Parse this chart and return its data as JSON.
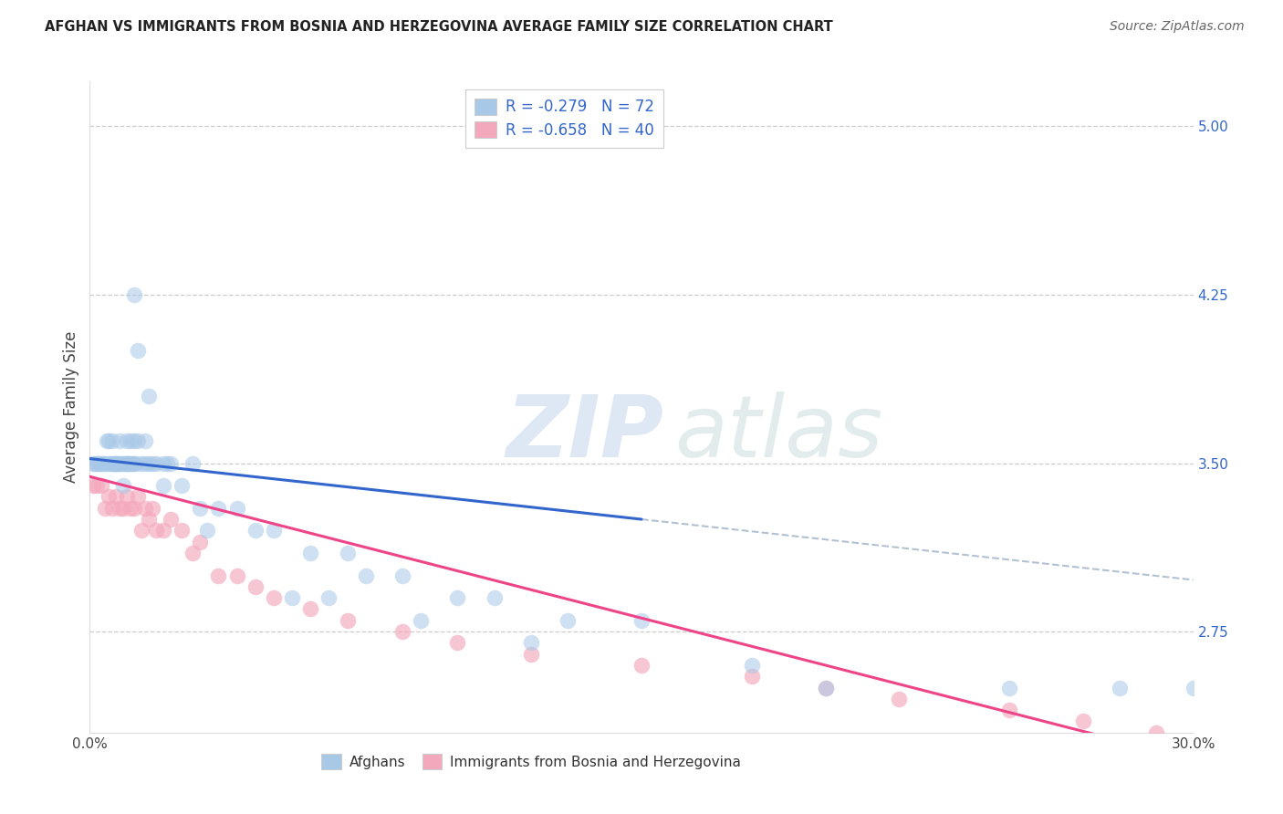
{
  "title": "AFGHAN VS IMMIGRANTS FROM BOSNIA AND HERZEGOVINA AVERAGE FAMILY SIZE CORRELATION CHART",
  "source": "Source: ZipAtlas.com",
  "ylabel": "Average Family Size",
  "right_yticks": [
    5.0,
    4.25,
    3.5,
    2.75
  ],
  "xlim": [
    0.0,
    30.0
  ],
  "ylim": [
    2.3,
    5.2
  ],
  "blue_color": "#a8c8e8",
  "pink_color": "#f4a8bc",
  "blue_line_color": "#3366cc",
  "pink_line_color": "#ee4488",
  "gray_dash_color": "#aabbcc",
  "afghans_x": [
    0.1,
    0.15,
    0.2,
    0.25,
    0.3,
    0.35,
    0.4,
    0.45,
    0.5,
    0.5,
    0.55,
    0.6,
    0.6,
    0.65,
    0.7,
    0.7,
    0.75,
    0.8,
    0.8,
    0.85,
    0.9,
    0.9,
    0.95,
    1.0,
    1.0,
    1.0,
    1.05,
    1.1,
    1.1,
    1.15,
    1.2,
    1.2,
    1.25,
    1.3,
    1.4,
    1.5,
    1.5,
    1.6,
    1.7,
    1.8,
    2.0,
    2.0,
    2.2,
    2.5,
    2.8,
    3.0,
    3.5,
    4.0,
    4.5,
    5.0,
    6.0,
    7.0,
    7.5,
    8.5,
    10.0,
    11.0,
    13.0,
    15.0,
    1.2,
    1.3,
    1.6,
    2.1,
    3.2,
    5.5,
    6.5,
    9.0,
    12.0,
    18.0,
    20.0,
    25.0,
    28.0,
    30.0
  ],
  "afghans_y": [
    3.5,
    3.5,
    3.5,
    3.5,
    3.5,
    3.5,
    3.5,
    3.6,
    3.5,
    3.6,
    3.5,
    3.5,
    3.6,
    3.5,
    3.5,
    3.5,
    3.5,
    3.5,
    3.6,
    3.5,
    3.5,
    3.4,
    3.5,
    3.5,
    3.6,
    3.5,
    3.5,
    3.5,
    3.6,
    3.5,
    3.5,
    3.6,
    3.5,
    3.6,
    3.5,
    3.5,
    3.6,
    3.5,
    3.5,
    3.5,
    3.5,
    3.4,
    3.5,
    3.4,
    3.5,
    3.3,
    3.3,
    3.3,
    3.2,
    3.2,
    3.1,
    3.1,
    3.0,
    3.0,
    2.9,
    2.9,
    2.8,
    2.8,
    4.25,
    4.0,
    3.8,
    3.5,
    3.2,
    2.9,
    2.9,
    2.8,
    2.7,
    2.6,
    2.5,
    2.5,
    2.5,
    2.5
  ],
  "bosnians_x": [
    0.1,
    0.2,
    0.3,
    0.4,
    0.5,
    0.6,
    0.7,
    0.8,
    0.9,
    1.0,
    1.1,
    1.2,
    1.3,
    1.4,
    1.5,
    1.6,
    1.7,
    1.8,
    2.0,
    2.2,
    2.5,
    2.8,
    3.0,
    3.5,
    4.0,
    4.5,
    5.0,
    6.0,
    7.0,
    8.5,
    10.0,
    12.0,
    15.0,
    18.0,
    20.0,
    22.0,
    25.0,
    27.0,
    29.0,
    29.8
  ],
  "bosnians_y": [
    3.4,
    3.4,
    3.4,
    3.3,
    3.35,
    3.3,
    3.35,
    3.3,
    3.3,
    3.35,
    3.3,
    3.3,
    3.35,
    3.2,
    3.3,
    3.25,
    3.3,
    3.2,
    3.2,
    3.25,
    3.2,
    3.1,
    3.15,
    3.0,
    3.0,
    2.95,
    2.9,
    2.85,
    2.8,
    2.75,
    2.7,
    2.65,
    2.6,
    2.55,
    2.5,
    2.45,
    2.4,
    2.35,
    2.3,
    2.2
  ],
  "blue_line_x_start": 0,
  "blue_line_x_solid_end": 15,
  "blue_line_x_dash_end": 30,
  "blue_intercept": 3.52,
  "blue_slope": -0.018,
  "pink_intercept": 3.44,
  "pink_slope": -0.042
}
